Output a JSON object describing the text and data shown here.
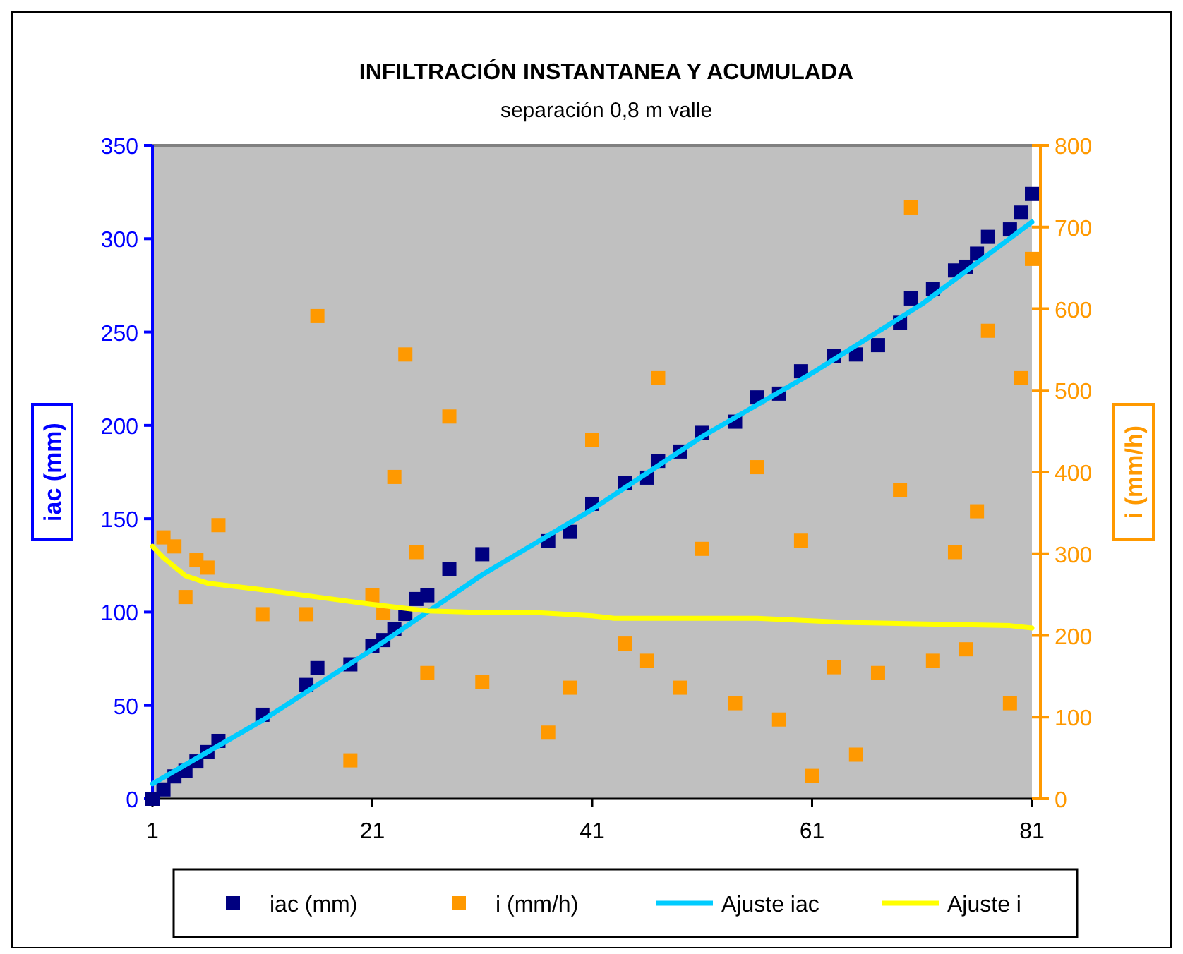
{
  "chart_data": {
    "type": "scatter",
    "title": "INFILTRACIÓN INSTANTANEA Y ACUMULADA",
    "subtitle": "separación 0,8 m valle",
    "ylabel": "iac (mm)",
    "y2label": "i (mm/h)",
    "xlim": [
      1,
      81
    ],
    "xticks": [
      1,
      21,
      41,
      61,
      81
    ],
    "ylim": [
      0,
      350
    ],
    "yticks": [
      0,
      50,
      100,
      150,
      200,
      250,
      300,
      350
    ],
    "y2lim": [
      0,
      800
    ],
    "y2ticks": [
      0,
      100,
      200,
      300,
      400,
      500,
      600,
      700,
      800
    ],
    "grid": false,
    "legend": "bottom",
    "marker": "square",
    "series": [
      {
        "name": "iac (mm)",
        "color": "#000080",
        "x": [
          1,
          2,
          3,
          4,
          5,
          6,
          7,
          11,
          15,
          16,
          19,
          21,
          22,
          23,
          24,
          25,
          26,
          28,
          31,
          37,
          39,
          41,
          44,
          46,
          47,
          49,
          51,
          54,
          56,
          58,
          60,
          63,
          65,
          67,
          69,
          70,
          72,
          74,
          75,
          76,
          77,
          79,
          80,
          81
        ],
        "values": [
          0,
          5,
          12,
          15,
          20,
          25,
          31,
          45,
          61,
          70,
          72,
          82,
          85,
          91,
          99,
          107,
          109,
          123,
          131,
          138,
          143,
          158,
          169,
          172,
          181,
          186,
          196,
          202,
          215,
          217,
          229,
          237,
          238,
          243,
          255,
          268,
          273,
          283,
          285,
          292,
          301,
          305,
          314,
          324
        ]
      },
      {
        "name": "i (mm/h)",
        "axis": "y2",
        "color": "#ff9900",
        "x": [
          2,
          3,
          4,
          5,
          6,
          7,
          11,
          15,
          16,
          19,
          21,
          22,
          23,
          24,
          25,
          26,
          28,
          31,
          37,
          39,
          41,
          44,
          46,
          47,
          49,
          51,
          54,
          56,
          58,
          60,
          61,
          63,
          65,
          67,
          69,
          70,
          72,
          74,
          75,
          76,
          77,
          79,
          80,
          81
        ],
        "values": [
          320,
          309,
          247,
          292,
          283,
          335,
          226,
          226,
          591,
          47,
          249,
          228,
          394,
          544,
          302,
          154,
          468,
          143,
          81,
          136,
          439,
          190,
          169,
          515,
          136,
          306,
          117,
          406,
          97,
          316,
          28,
          161,
          54,
          154,
          378,
          724,
          169,
          302,
          183,
          352,
          573,
          117,
          515,
          661
        ]
      },
      {
        "name": "Ajuste iac",
        "type": "line",
        "color": "#00ccff",
        "marker": "none",
        "x": [
          1,
          11,
          21,
          26,
          31,
          41,
          51,
          61,
          71,
          81
        ],
        "values": [
          8,
          42,
          80,
          100,
          120,
          155,
          194,
          228,
          265,
          309
        ]
      },
      {
        "name": "Ajuste i",
        "type": "line",
        "axis": "y2",
        "color": "#ffff00",
        "marker": "none",
        "x": [
          1,
          2,
          4,
          6,
          11,
          16,
          21,
          26,
          31,
          36,
          41,
          43,
          56,
          64,
          79,
          81
        ],
        "values": [
          309,
          295,
          273,
          264,
          256,
          247,
          238,
          230,
          228,
          228,
          224,
          221,
          221,
          216,
          212,
          209
        ]
      }
    ]
  }
}
